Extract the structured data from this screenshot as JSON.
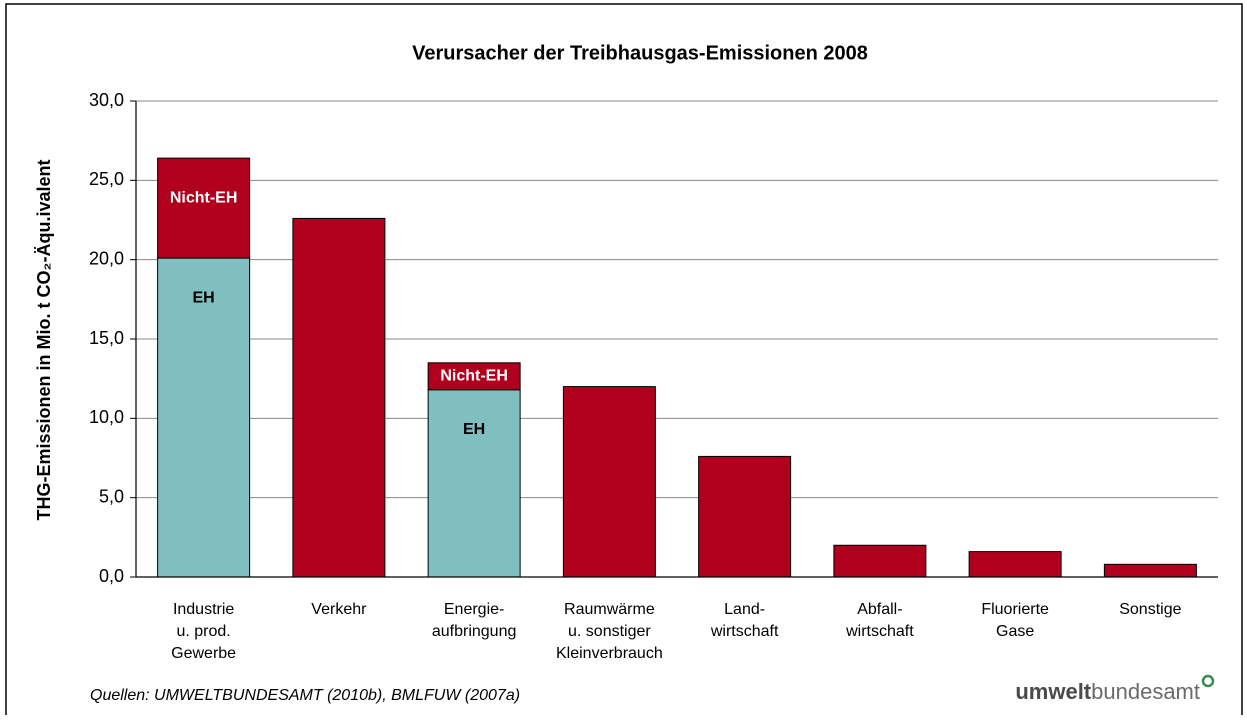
{
  "chart_data": {
    "type": "stacked_bar",
    "title": "Verursacher der Treibhausgas-Emissionen 2008",
    "y_label": "THG-Emissionen in Mio. t CO₂-Äqu.ivalent",
    "categories": [
      [
        "Industrie",
        "u. prod.",
        "Gewerbe"
      ],
      [
        "Verkehr"
      ],
      [
        "Energie-",
        "aufbringung"
      ],
      [
        "Raumwärme",
        "u. sonstiger",
        "Kleinverbrauch"
      ],
      [
        "Land-",
        "wirtschaft"
      ],
      [
        "Abfall-",
        "wirtschaft"
      ],
      [
        "Fluorierte",
        "Gase"
      ],
      [
        "Sonstige"
      ]
    ],
    "series": [
      {
        "name": "EH",
        "color": "#80bfbf",
        "values": [
          20.1,
          null,
          11.8,
          null,
          null,
          null,
          null,
          null
        ],
        "labeled": [
          true,
          false,
          true,
          false,
          false,
          false,
          false,
          false
        ]
      },
      {
        "name": "Nicht-EH",
        "color": "#b0001e",
        "values": [
          6.3,
          22.6,
          1.7,
          12.0,
          7.6,
          2.0,
          1.6,
          0.8
        ],
        "labeled": [
          true,
          false,
          true,
          false,
          false,
          false,
          false,
          false
        ]
      }
    ],
    "ylim": [
      0,
      30
    ],
    "yticks": [
      {
        "value": 0,
        "label": "0,0"
      },
      {
        "value": 5,
        "label": "5,0"
      },
      {
        "value": 10,
        "label": "10,0"
      },
      {
        "value": 15,
        "label": "15,0"
      },
      {
        "value": 20,
        "label": "20,0"
      },
      {
        "value": 25,
        "label": "25,0"
      },
      {
        "value": 30,
        "label": "30,0"
      }
    ],
    "grid": true,
    "source": "Quellen: UMWELTBUNDESAMT (2010b), BMLFUW (2007a)",
    "logo": [
      "umwelt",
      "bundesamt"
    ]
  }
}
